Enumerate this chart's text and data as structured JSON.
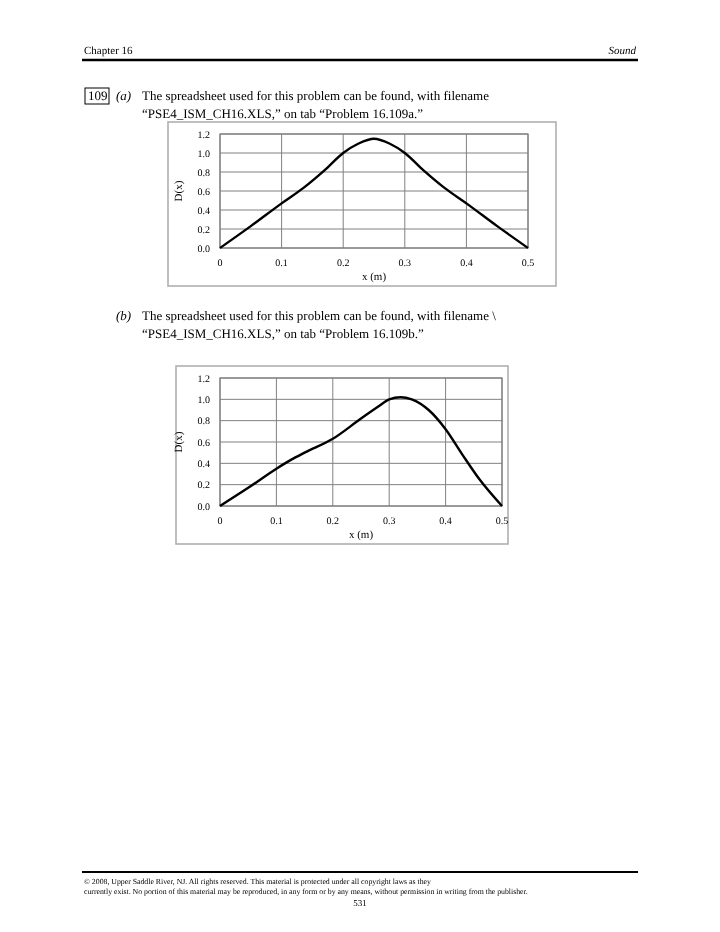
{
  "chart_data": [
    {
      "type": "line",
      "xlabel": "x (m)",
      "ylabel": "D(x)",
      "grid": true,
      "marker": "none",
      "line_style": "solid",
      "x": [
        0,
        0.05,
        0.1,
        0.135,
        0.17,
        0.2,
        0.225,
        0.25,
        0.275,
        0.3,
        0.33,
        0.365,
        0.4,
        0.45,
        0.5
      ],
      "series": [
        {
          "color": "#000000",
          "values": [
            0,
            0.23,
            0.47,
            0.63,
            0.82,
            1.0,
            1.1,
            1.15,
            1.1,
            1.0,
            0.82,
            0.63,
            0.47,
            0.23,
            0
          ]
        }
      ],
      "xlim": [
        0,
        0.5
      ],
      "xticks": [
        0,
        0.1,
        0.2,
        0.3,
        0.4,
        0.5
      ],
      "ylim": [
        0,
        1.2
      ],
      "yticks": [
        {
          "value": 0,
          "label": "0.0"
        },
        {
          "value": 0.2,
          "label": "0.2"
        },
        {
          "value": 0.4,
          "label": "0.4"
        },
        {
          "value": 0.6,
          "label": "0.6"
        },
        {
          "value": 0.8,
          "label": "0.8"
        },
        {
          "value": 1,
          "label": "1.0"
        },
        {
          "value": 1.2,
          "label": "1.2"
        }
      ],
      "annotations": [
        "Chapter 16",
        "Sound",
        "109",
        "(a)",
        "The spreadsheet used for this problem can be found, with filename",
        "“PSE4_ISM_CH16.XLS,” on tab “Problem 16.109a.”"
      ]
    },
    {
      "type": "line",
      "xlabel": "x (m)",
      "ylabel": "D(x)",
      "grid": true,
      "marker": "none",
      "line_style": "solid",
      "x": [
        0,
        0.05,
        0.1,
        0.125,
        0.15,
        0.2,
        0.25,
        0.28,
        0.3,
        0.32,
        0.34,
        0.37,
        0.4,
        0.43,
        0.46,
        0.5
      ],
      "series": [
        {
          "color": "#000000",
          "values": [
            0,
            0.17,
            0.35,
            0.43,
            0.5,
            0.63,
            0.82,
            0.93,
            1.0,
            1.02,
            1.0,
            0.9,
            0.72,
            0.48,
            0.25,
            0
          ]
        }
      ],
      "xlim": [
        0,
        0.5
      ],
      "xticks": [
        0,
        0.1,
        0.2,
        0.3,
        0.4,
        0.5
      ],
      "ylim": [
        0,
        1.2
      ],
      "yticks": [
        {
          "value": 0,
          "label": "0.0"
        },
        {
          "value": 0.2,
          "label": "0.2"
        },
        {
          "value": 0.4,
          "label": "0.4"
        },
        {
          "value": 0.6,
          "label": "0.6"
        },
        {
          "value": 0.8,
          "label": "0.8"
        },
        {
          "value": 1,
          "label": "1.0"
        },
        {
          "value": 1.2,
          "label": "1.2"
        }
      ],
      "annotations": [
        "(b)",
        "The spreadsheet used for this problem can be found, with filename \\",
        "“PSE4_ISM_CH16.XLS,” on tab “Problem 16.109b.”",
        "© 2008, Upper Saddle River, NJ. All rights reserved. This material is protected under all copyright laws as they",
        "currently exist. No portion of this material may be reproduced, in any form or by any means, without permission in writing from the publisher.",
        "531"
      ]
    }
  ]
}
